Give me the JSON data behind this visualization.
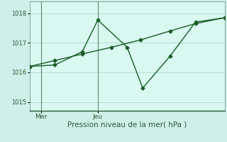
{
  "bg_color": "#cef0e8",
  "plot_bg_color": "#d8f8f0",
  "line_color": "#1a5c28",
  "grid_color": "#b0ddd0",
  "yticks": [
    1015,
    1016,
    1017,
    1018
  ],
  "ylim": [
    1014.7,
    1018.4
  ],
  "xlim": [
    0,
    10
  ],
  "xtick_positions": [
    0.6,
    3.5
  ],
  "xtick_labels": [
    "Mer",
    "Jeu"
  ],
  "xlabel": "Pression niveau de la mer( hPa )",
  "vline_positions": [
    0.6,
    3.5
  ],
  "line1_x": [
    0.0,
    1.3,
    2.7,
    4.2,
    5.7,
    7.2,
    8.5,
    10.0
  ],
  "line1_y": [
    1016.2,
    1016.4,
    1016.62,
    1016.85,
    1017.1,
    1017.4,
    1017.65,
    1017.85
  ],
  "line2_x": [
    0.0,
    1.3,
    2.7,
    3.5,
    5.0,
    5.8,
    7.2,
    8.5,
    10.0
  ],
  "line2_y": [
    1016.2,
    1016.25,
    1016.7,
    1017.77,
    1016.85,
    1015.47,
    1016.55,
    1017.7,
    1017.85
  ],
  "marker": "D",
  "markersize": 2.5,
  "ytick_fontsize": 6,
  "xtick_fontsize": 6.5,
  "xlabel_fontsize": 7.5
}
